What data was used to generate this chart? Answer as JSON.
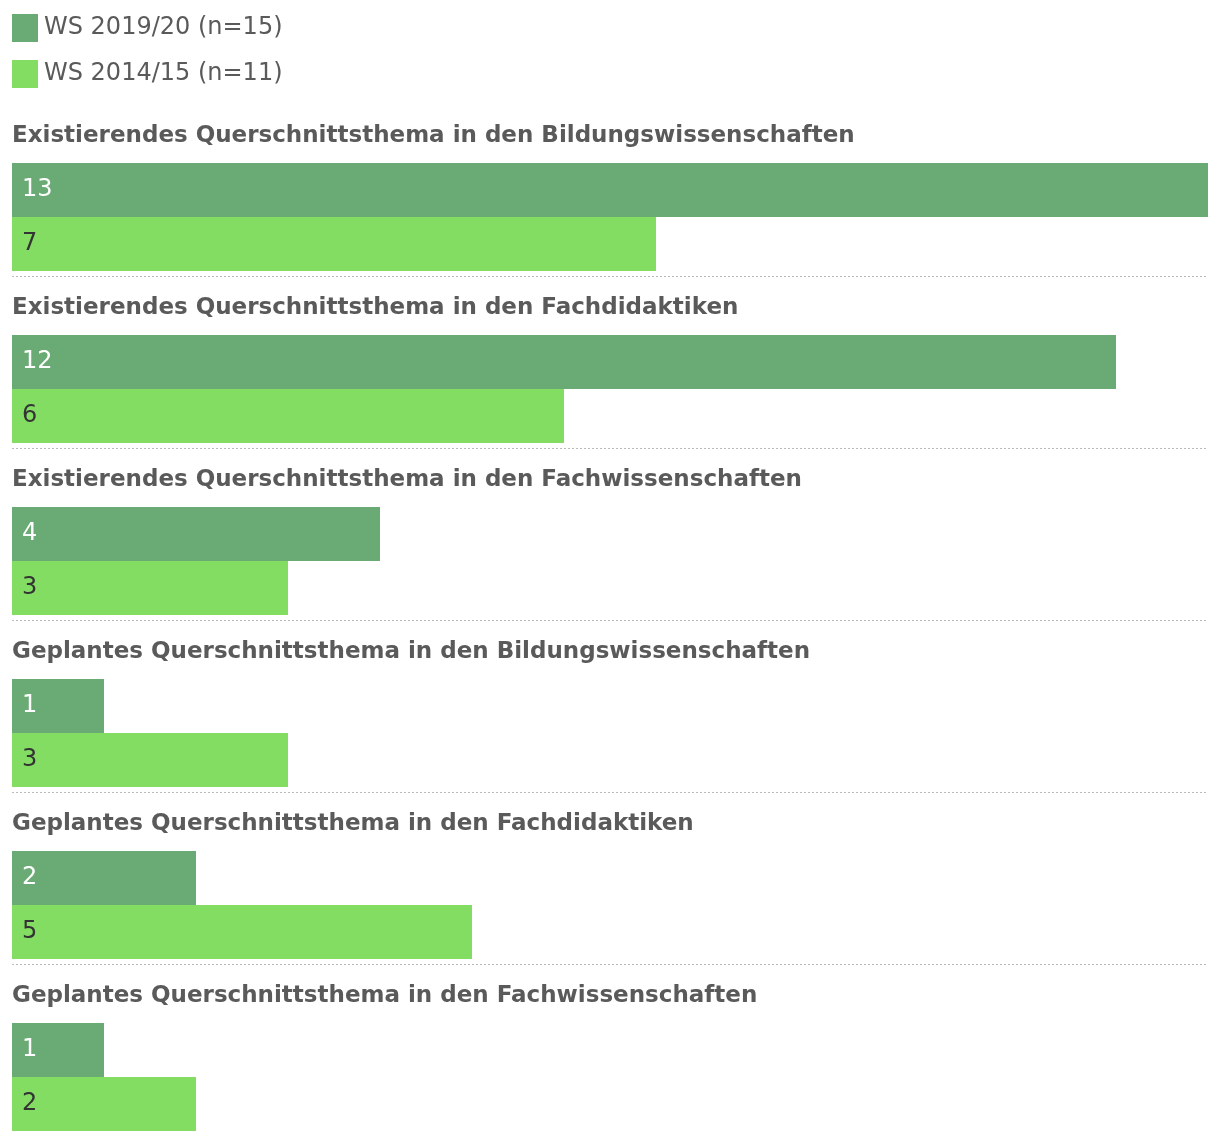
{
  "chart_data": {
    "type": "bar",
    "orientation": "horizontal",
    "categories": [
      "Existierendes Querschnittsthema in den Bildungswissenschaften",
      "Existierendes Querschnittsthema in den Fachdidaktiken",
      "Existierendes Querschnittsthema in den Fachwissenschaften",
      "Geplantes Querschnittsthema in den Bildungswissenschaften",
      "Geplantes Querschnittsthema in den Fachdidaktiken",
      "Geplantes Querschnittsthema in den Fachwissenschaften"
    ],
    "series": [
      {
        "name": "WS 2019/20 (n=15)",
        "color": "#6aaa74",
        "values": [
          13,
          12,
          4,
          1,
          2,
          1
        ]
      },
      {
        "name": "WS 2014/15 (n=11)",
        "color": "#84dd63",
        "values": [
          7,
          6,
          3,
          3,
          5,
          2
        ]
      }
    ],
    "xlim": [
      0,
      13
    ],
    "tick_labels": false,
    "legend": "top left",
    "data_labels": true
  }
}
